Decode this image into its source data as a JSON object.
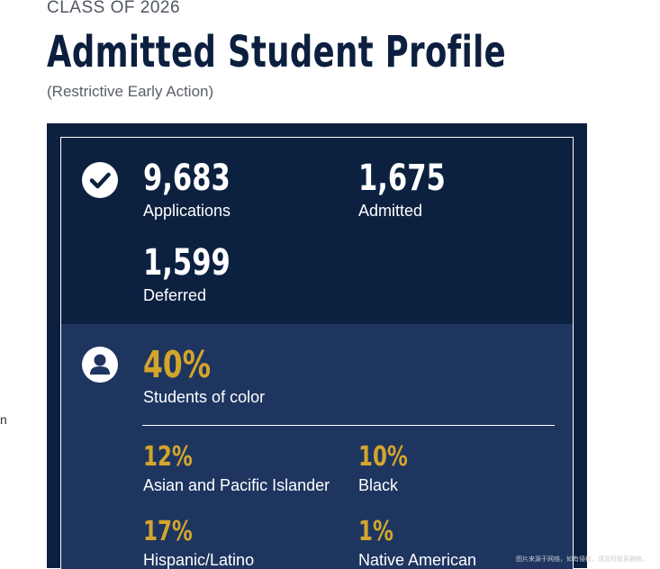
{
  "header": {
    "eyebrow": "CLASS OF 2026",
    "title": "Admitted Student Profile",
    "subtitle": "(Restrictive Early Action)"
  },
  "side_fragment": "n",
  "admissions": {
    "icon": "check-circle-icon",
    "stats": [
      {
        "value": "9,683",
        "label": "Applications"
      },
      {
        "value": "1,675",
        "label": "Admitted"
      },
      {
        "value": "1,599",
        "label": "Deferred"
      }
    ]
  },
  "diversity": {
    "icon": "user-circle-icon",
    "headline": {
      "value": "40%",
      "label": "Students of color"
    },
    "breakdown": [
      {
        "value": "12%",
        "label": "Asian and Pacific Islander"
      },
      {
        "value": "10%",
        "label": "Black"
      },
      {
        "value": "17%",
        "label": "Hispanic/Latino"
      },
      {
        "value": "1%",
        "label": "Native American"
      }
    ]
  },
  "colors": {
    "navy": "#0c2040",
    "navy_light": "#1e3560",
    "gold": "#d4a52c"
  },
  "watermark": "图片来源于网络，如有侵权，请及时联系删除。"
}
